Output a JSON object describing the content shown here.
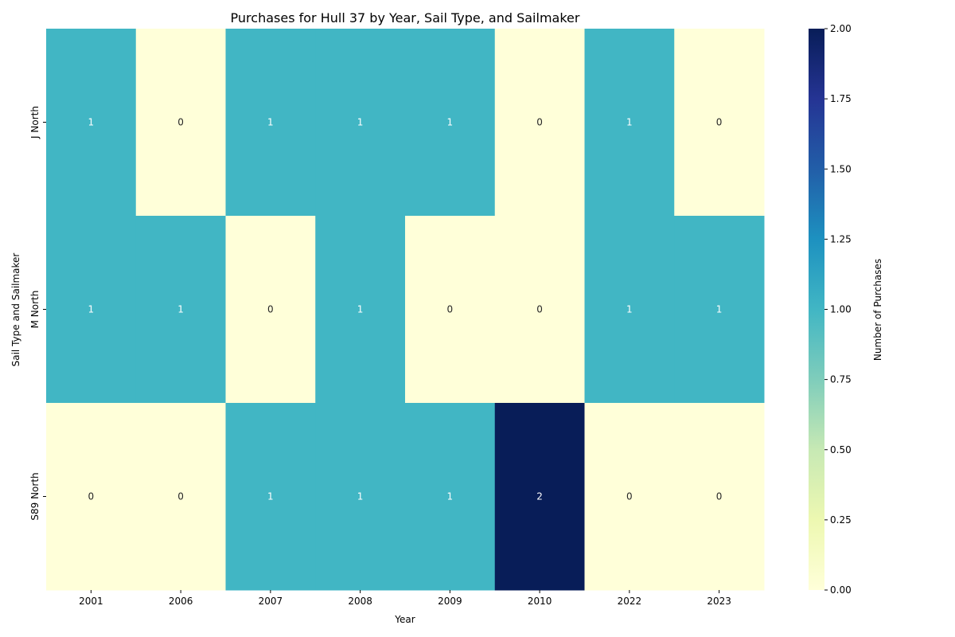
{
  "chart_data": {
    "type": "heatmap",
    "title": "Purchases for Hull 37 by Year, Sail Type, and Sailmaker",
    "xlabel": "Year",
    "ylabel": "Sail Type and Sailmaker",
    "x_categories": [
      "2001",
      "2006",
      "2007",
      "2008",
      "2009",
      "2010",
      "2022",
      "2023"
    ],
    "y_categories": [
      "J North",
      "M North",
      "S89 North"
    ],
    "values": [
      [
        1,
        0,
        1,
        1,
        1,
        0,
        1,
        0
      ],
      [
        1,
        1,
        0,
        1,
        0,
        0,
        1,
        1
      ],
      [
        0,
        0,
        1,
        1,
        1,
        2,
        0,
        0
      ]
    ],
    "colorbar": {
      "label": "Number of Purchases",
      "range": [
        0,
        2
      ],
      "ticks": [
        "0.00",
        "0.25",
        "0.50",
        "0.75",
        "1.00",
        "1.25",
        "1.50",
        "1.75",
        "2.00"
      ],
      "colormap": "YlGnBu",
      "stops": [
        "#ffffd9",
        "#edf8b1",
        "#c7e9b4",
        "#7fcdbb",
        "#41b6c4",
        "#1d91c0",
        "#225ea8",
        "#253494",
        "#081d58"
      ]
    },
    "grid": false,
    "annotations": true
  }
}
